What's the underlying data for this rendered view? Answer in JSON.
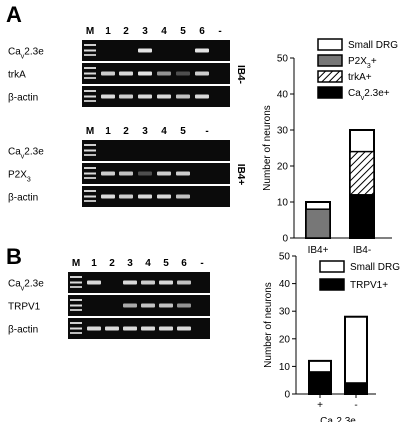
{
  "panels": {
    "A": {
      "letter": "A",
      "gel_top": {
        "lane_labels": [
          "M",
          "1",
          "2",
          "3",
          "4",
          "5",
          "6",
          "-"
        ],
        "rows": [
          {
            "base": "Ca",
            "sub": "v",
            "rest": "2.3e"
          },
          {
            "base": "trkA",
            "sub": "",
            "rest": ""
          },
          {
            "base": "β-actin",
            "sub": "",
            "rest": ""
          }
        ],
        "group": "IB4-"
      },
      "gel_bottom": {
        "lane_labels": [
          "M",
          "1",
          "2",
          "3",
          "4",
          "5",
          "-"
        ],
        "rows": [
          {
            "base": "Ca",
            "sub": "v",
            "rest": "2.3e"
          },
          {
            "base": "P2X",
            "sub": "3",
            "rest": ""
          },
          {
            "base": "β-actin",
            "sub": "",
            "rest": ""
          }
        ],
        "group": "IB4+"
      }
    },
    "B": {
      "letter": "B",
      "gel": {
        "lane_labels": [
          "M",
          "1",
          "2",
          "3",
          "4",
          "5",
          "6",
          "-"
        ],
        "rows": [
          {
            "base": "Ca",
            "sub": "v",
            "rest": "2.3e"
          },
          {
            "base": "TRPV1",
            "sub": "",
            "rest": ""
          },
          {
            "base": "β-actin",
            "sub": "",
            "rest": ""
          }
        ]
      }
    }
  },
  "chart_data": [
    {
      "type": "bar",
      "panel": "A",
      "categories": [
        "IB4+",
        "IB4-"
      ],
      "ylabel": "Number of neurons",
      "xlabel": "",
      "ylim": [
        0,
        50
      ],
      "yticks": [
        0,
        10,
        20,
        30,
        40,
        50
      ],
      "legend": [
        {
          "name": "Small DRG",
          "style": "white"
        },
        {
          "name": "P2X",
          "sub": "3",
          "rest": "+",
          "style": "gray"
        },
        {
          "name": "trkA+",
          "style": "hatch"
        },
        {
          "name": "Ca",
          "sub": "v",
          "rest": "2.3e+",
          "style": "black"
        }
      ],
      "legend_position": "top-right",
      "series": [
        {
          "name": "Small DRG",
          "values": [
            10,
            30
          ]
        },
        {
          "name": "P2X3+",
          "values": [
            8,
            0
          ]
        },
        {
          "name": "trkA+",
          "values": [
            0,
            24
          ]
        },
        {
          "name": "Cav2.3e+",
          "values": [
            0,
            12
          ]
        }
      ]
    },
    {
      "type": "bar",
      "panel": "B",
      "categories": [
        "+",
        "-"
      ],
      "xlabel": {
        "base": "Ca",
        "sub": "v",
        "rest": "2.3e"
      },
      "ylabel": "Number of neurons",
      "ylim": [
        0,
        50
      ],
      "yticks": [
        0,
        10,
        20,
        30,
        40,
        50
      ],
      "legend": [
        {
          "name": "Small DRG",
          "style": "white"
        },
        {
          "name": "TRPV1+",
          "style": "black"
        }
      ],
      "legend_position": "top-right",
      "series": [
        {
          "name": "Small DRG",
          "values": [
            12,
            28
          ]
        },
        {
          "name": "TRPV1+",
          "values": [
            8,
            4
          ]
        }
      ]
    }
  ],
  "colors": {
    "black": "#000000",
    "gray": "#777777",
    "white": "#ffffff",
    "gel_bg": "#0a0a0a",
    "band": "#e8e8e8"
  }
}
